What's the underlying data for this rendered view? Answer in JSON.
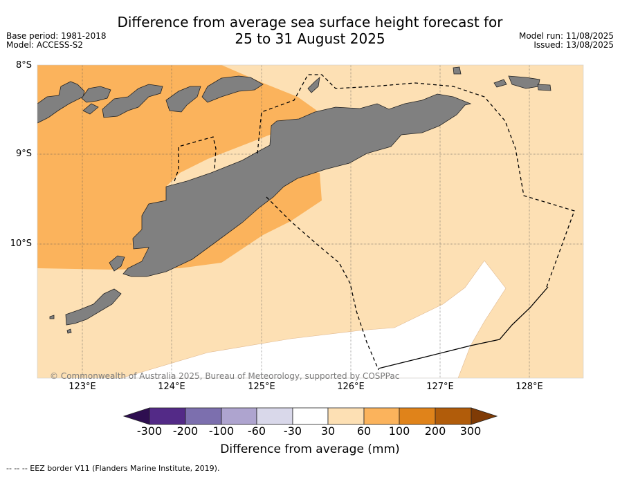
{
  "title_line1": "Difference from average sea surface height forecast for",
  "title_line2": "25 to 31 August 2025",
  "base_period": "Base period: 1981-2018",
  "model": "Model: ACCESS-S2",
  "model_run": "Model run: 11/08/2025",
  "issued": "Issued: 13/08/2025",
  "lat_labels": [
    "8°S",
    "9°S",
    "10°S"
  ],
  "lon_labels": [
    "123°E",
    "124°E",
    "125°E",
    "126°E",
    "127°E",
    "128°E"
  ],
  "copyright": "© Commonwealth of Australia 2025, Bureau of Meteorology, supported by COSPPac",
  "colorbar": {
    "label": "Difference from average (mm)",
    "ticks": [
      "-300",
      "-200",
      "-100",
      "-60",
      "-30",
      "30",
      "60",
      "100",
      "200",
      "300"
    ],
    "colors": [
      "#2e0e50",
      "#532a87",
      "#7c6fae",
      "#aea4cf",
      "#d9d8ea",
      "#ffffff",
      "#fde0b4",
      "#fbb35c",
      "#e0831a",
      "#b15c0a",
      "#7f3b06"
    ]
  },
  "map_colors": {
    "land": "#808080",
    "band_30_60": "#fde0b4",
    "band_60_100": "#fbb35c",
    "band_neutral": "#ffffff"
  },
  "footnote": "--  --  -- EEZ border V11 (Flanders Marine Institute, 2019)."
}
